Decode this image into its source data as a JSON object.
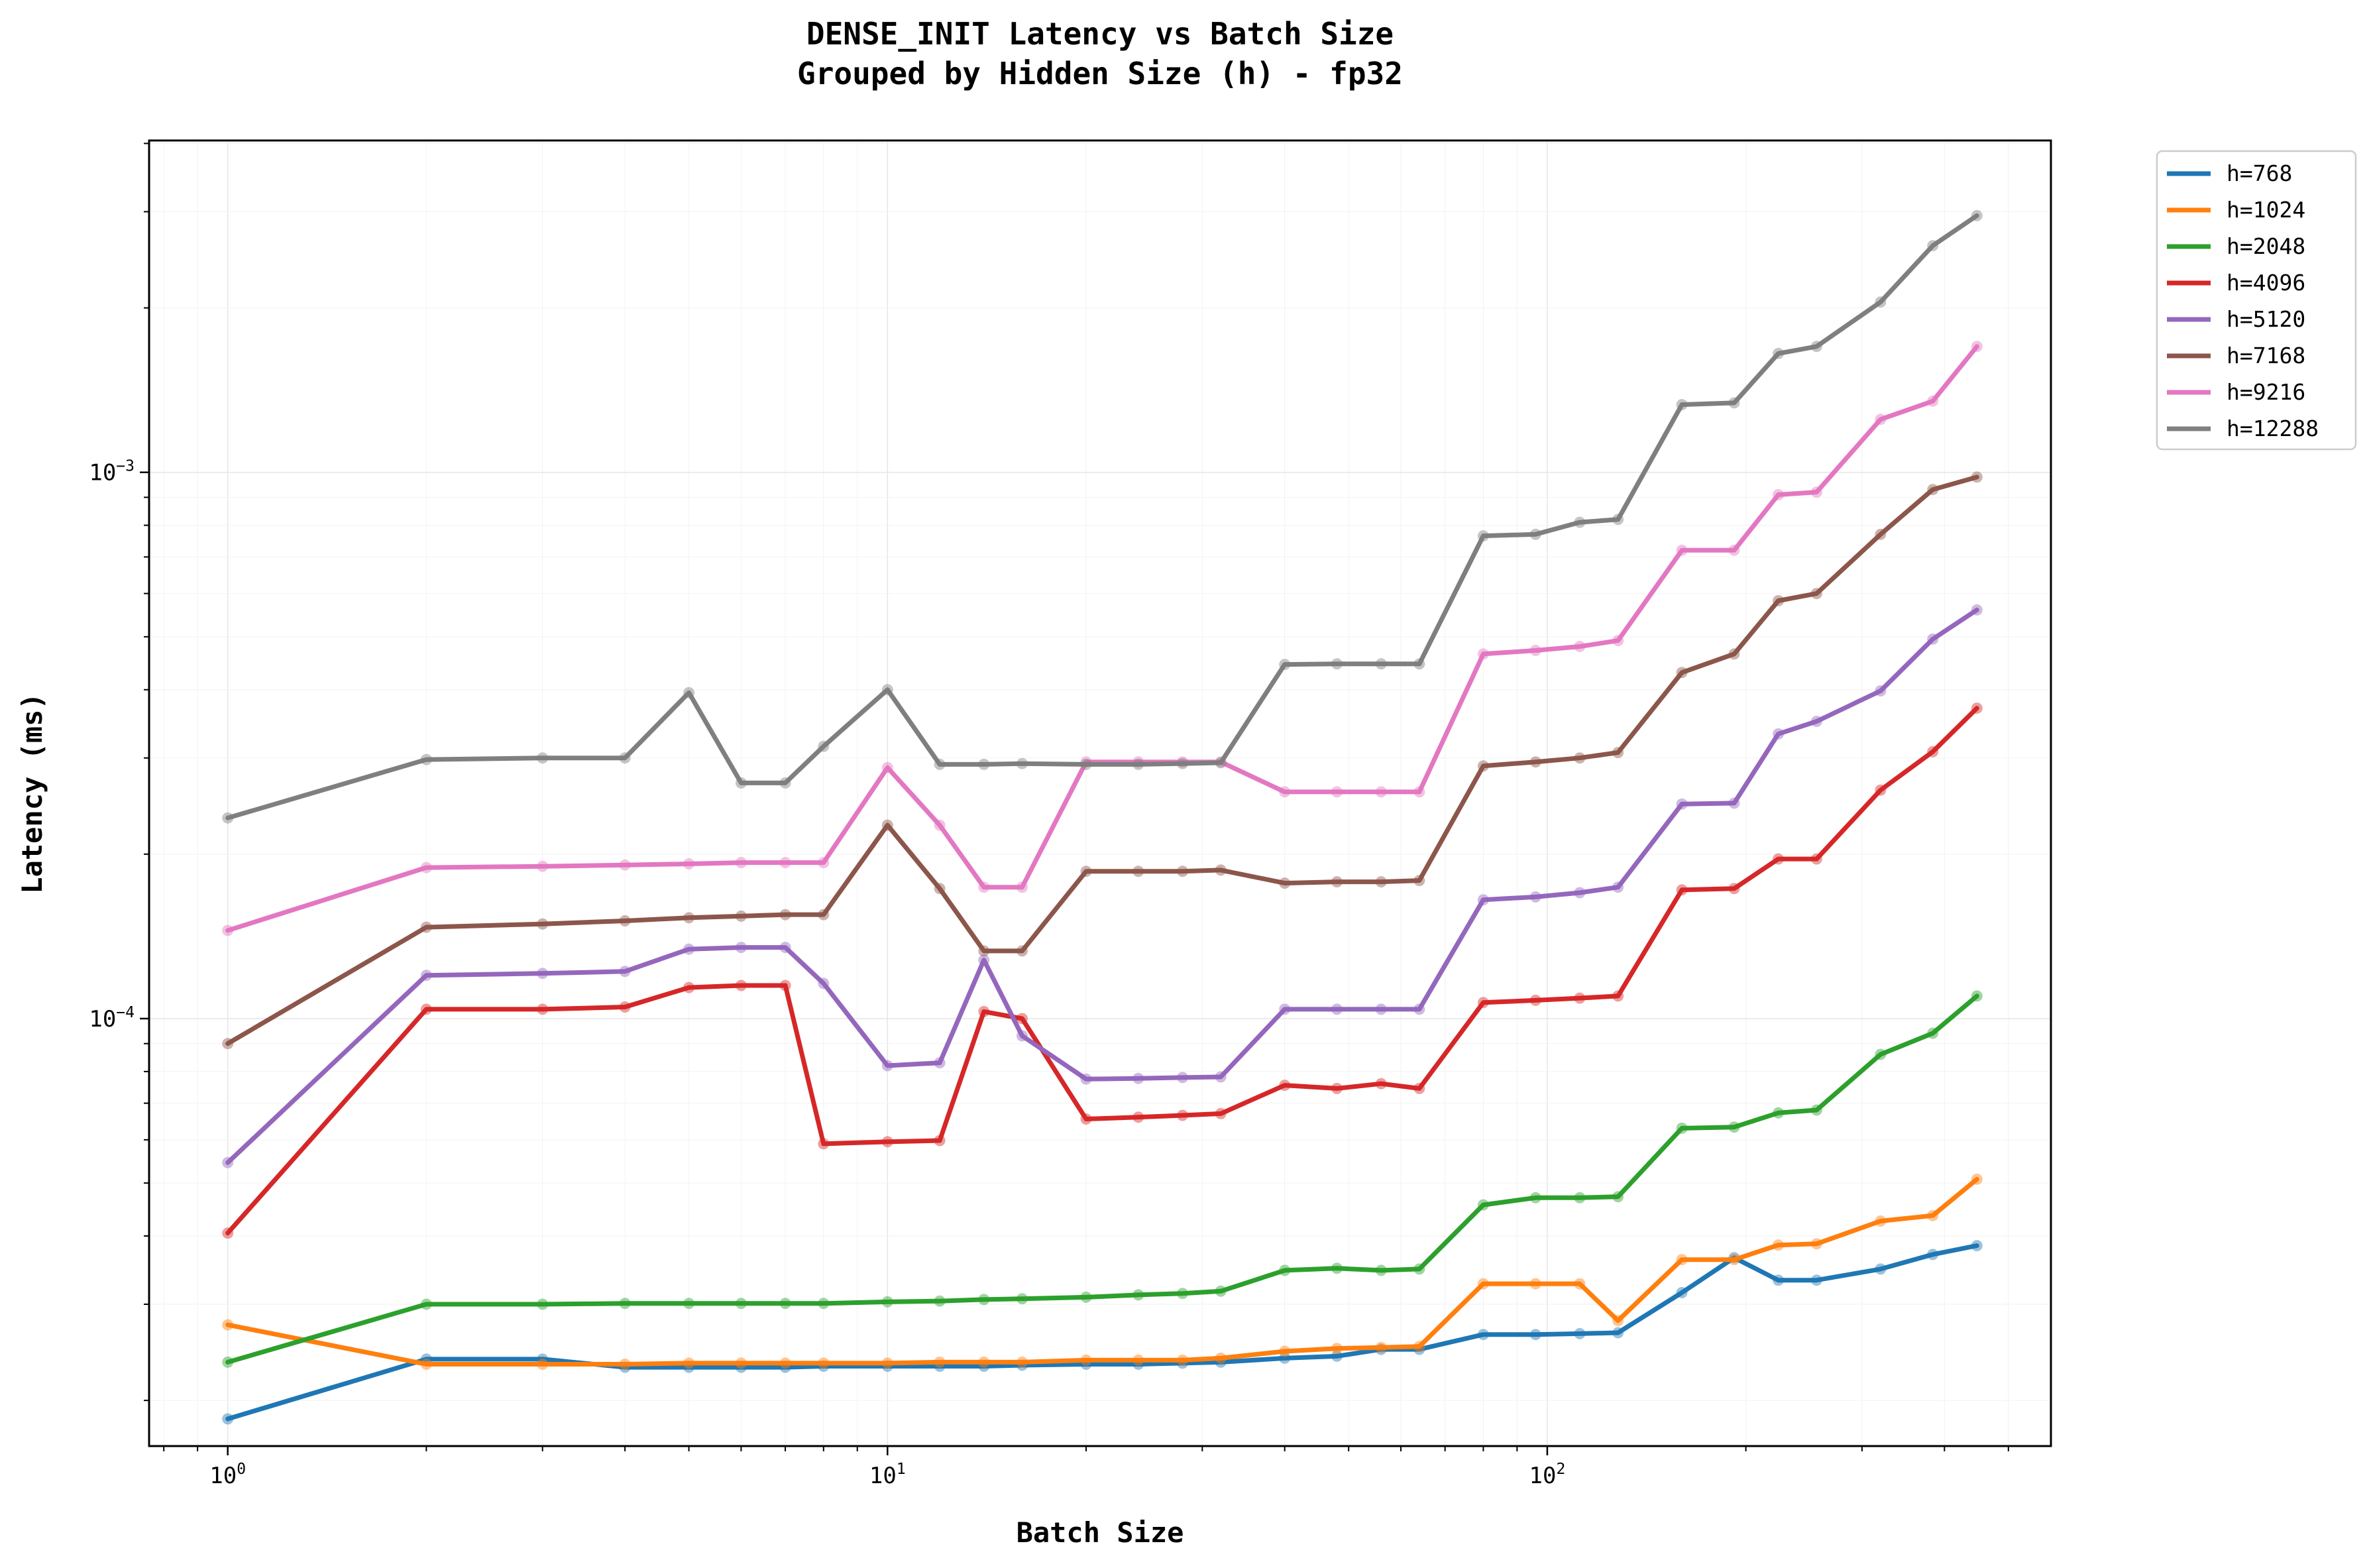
{
  "chart_data": {
    "type": "line",
    "title": "DENSE_INIT Latency vs Batch Size",
    "subtitle": "Grouped by Hidden Size (h) - fp32",
    "xlabel": "Batch Size",
    "ylabel": "Latency (ms)",
    "xscale": "log",
    "yscale": "log",
    "xlim": [
      0.76,
      580
    ],
    "ylim": [
      1.65e-05,
      0.00405
    ],
    "xticks": [
      {
        "value": 1,
        "base": "10",
        "exp": "0"
      },
      {
        "value": 10,
        "base": "10",
        "exp": "1"
      },
      {
        "value": 100,
        "base": "10",
        "exp": "2"
      }
    ],
    "yticks": [
      {
        "value": 0.0001,
        "base": "10",
        "exp": "−4"
      },
      {
        "value": 0.001,
        "base": "10",
        "exp": "−3"
      }
    ],
    "grid": true,
    "legend_position": "outside-top-right",
    "x": [
      1,
      2,
      3,
      4,
      5,
      6,
      7,
      8,
      10,
      12,
      14,
      16,
      20,
      24,
      28,
      32,
      40,
      48,
      56,
      64,
      80,
      96,
      112,
      128,
      160,
      192,
      224,
      256,
      320,
      384,
      448
    ],
    "series": [
      {
        "name": "h=768",
        "color": "#1f77b4",
        "values": [
          1.85e-05,
          2.38e-05,
          2.38e-05,
          2.3e-05,
          2.3e-05,
          2.3e-05,
          2.3e-05,
          2.31e-05,
          2.31e-05,
          2.31e-05,
          2.31e-05,
          2.32e-05,
          2.33e-05,
          2.33e-05,
          2.34e-05,
          2.35e-05,
          2.39e-05,
          2.41e-05,
          2.48e-05,
          2.48e-05,
          2.64e-05,
          2.64e-05,
          2.65e-05,
          2.66e-05,
          3.15e-05,
          3.65e-05,
          3.32e-05,
          3.32e-05,
          3.48e-05,
          3.7e-05,
          3.84e-05
        ]
      },
      {
        "name": "h=1024",
        "color": "#ff7f0e",
        "values": [
          2.75e-05,
          2.33e-05,
          2.33e-05,
          2.33e-05,
          2.34e-05,
          2.34e-05,
          2.34e-05,
          2.34e-05,
          2.34e-05,
          2.35e-05,
          2.35e-05,
          2.35e-05,
          2.37e-05,
          2.37e-05,
          2.37e-05,
          2.39e-05,
          2.46e-05,
          2.49e-05,
          2.5e-05,
          2.51e-05,
          3.27e-05,
          3.27e-05,
          3.27e-05,
          2.8e-05,
          3.62e-05,
          3.62e-05,
          3.85e-05,
          3.87e-05,
          4.26e-05,
          4.36e-05,
          5.08e-05
        ]
      },
      {
        "name": "h=2048",
        "color": "#2ca02c",
        "values": [
          2.35e-05,
          3e-05,
          3e-05,
          3.01e-05,
          3.01e-05,
          3.01e-05,
          3.01e-05,
          3.01e-05,
          3.03e-05,
          3.04e-05,
          3.06e-05,
          3.07e-05,
          3.09e-05,
          3.12e-05,
          3.14e-05,
          3.17e-05,
          3.46e-05,
          3.49e-05,
          3.46e-05,
          3.48e-05,
          4.56e-05,
          4.7e-05,
          4.7e-05,
          4.72e-05,
          6.3e-05,
          6.33e-05,
          6.72e-05,
          6.8e-05,
          8.6e-05,
          9.4e-05,
          0.00011
        ]
      },
      {
        "name": "h=4096",
        "color": "#d62728",
        "values": [
          4.05e-05,
          0.000104,
          0.000104,
          0.000105,
          0.000114,
          0.000115,
          0.000115,
          5.9e-05,
          5.95e-05,
          5.98e-05,
          0.000103,
          0.0001,
          6.55e-05,
          6.6e-05,
          6.65e-05,
          6.7e-05,
          7.55e-05,
          7.45e-05,
          7.6e-05,
          7.45e-05,
          0.000107,
          0.000108,
          0.000109,
          0.00011,
          0.000172,
          0.000173,
          0.000196,
          0.000196,
          0.000262,
          0.000308,
          0.00037
        ]
      },
      {
        "name": "h=5120",
        "color": "#9467bd",
        "values": [
          5.45e-05,
          0.00012,
          0.000121,
          0.000122,
          0.000134,
          0.000135,
          0.000135,
          0.000116,
          8.2e-05,
          8.3e-05,
          0.000128,
          9.3e-05,
          7.75e-05,
          7.77e-05,
          7.8e-05,
          7.82e-05,
          0.000104,
          0.000104,
          0.000104,
          0.000104,
          0.000165,
          0.000167,
          0.00017,
          0.000174,
          0.000247,
          0.000248,
          0.000332,
          0.00035,
          0.000398,
          0.000495,
          0.00056
        ]
      },
      {
        "name": "h=7168",
        "color": "#8c564b",
        "values": [
          9e-05,
          0.000147,
          0.000149,
          0.000151,
          0.000153,
          0.000154,
          0.000155,
          0.000155,
          0.000226,
          0.000173,
          0.000133,
          0.000133,
          0.000186,
          0.000186,
          0.000186,
          0.000187,
          0.000177,
          0.000178,
          0.000178,
          0.000179,
          0.00029,
          0.000295,
          0.0003,
          0.000307,
          0.00043,
          0.000465,
          0.000582,
          0.0006,
          0.00077,
          0.00093,
          0.00098
        ]
      },
      {
        "name": "h=9216",
        "color": "#e377c2",
        "values": [
          0.000145,
          0.000189,
          0.00019,
          0.000191,
          0.000192,
          0.000193,
          0.000193,
          0.000193,
          0.000288,
          0.000226,
          0.000174,
          0.000174,
          0.000295,
          0.000295,
          0.000295,
          0.000295,
          0.00026,
          0.00026,
          0.00026,
          0.00026,
          0.000465,
          0.000472,
          0.00048,
          0.000492,
          0.00072,
          0.00072,
          0.00091,
          0.00092,
          0.00125,
          0.00135,
          0.0017
        ]
      },
      {
        "name": "h=12288",
        "color": "#7f7f7f",
        "values": [
          0.000233,
          0.000298,
          0.0003,
          0.0003,
          0.000395,
          0.00027,
          0.00027,
          0.000315,
          0.0004,
          0.000292,
          0.000292,
          0.000293,
          0.000292,
          0.000292,
          0.000293,
          0.000294,
          0.000445,
          0.000446,
          0.000446,
          0.000446,
          0.000765,
          0.00077,
          0.00081,
          0.00082,
          0.00133,
          0.00134,
          0.00165,
          0.0017,
          0.00205,
          0.0026,
          0.00295
        ]
      }
    ]
  }
}
